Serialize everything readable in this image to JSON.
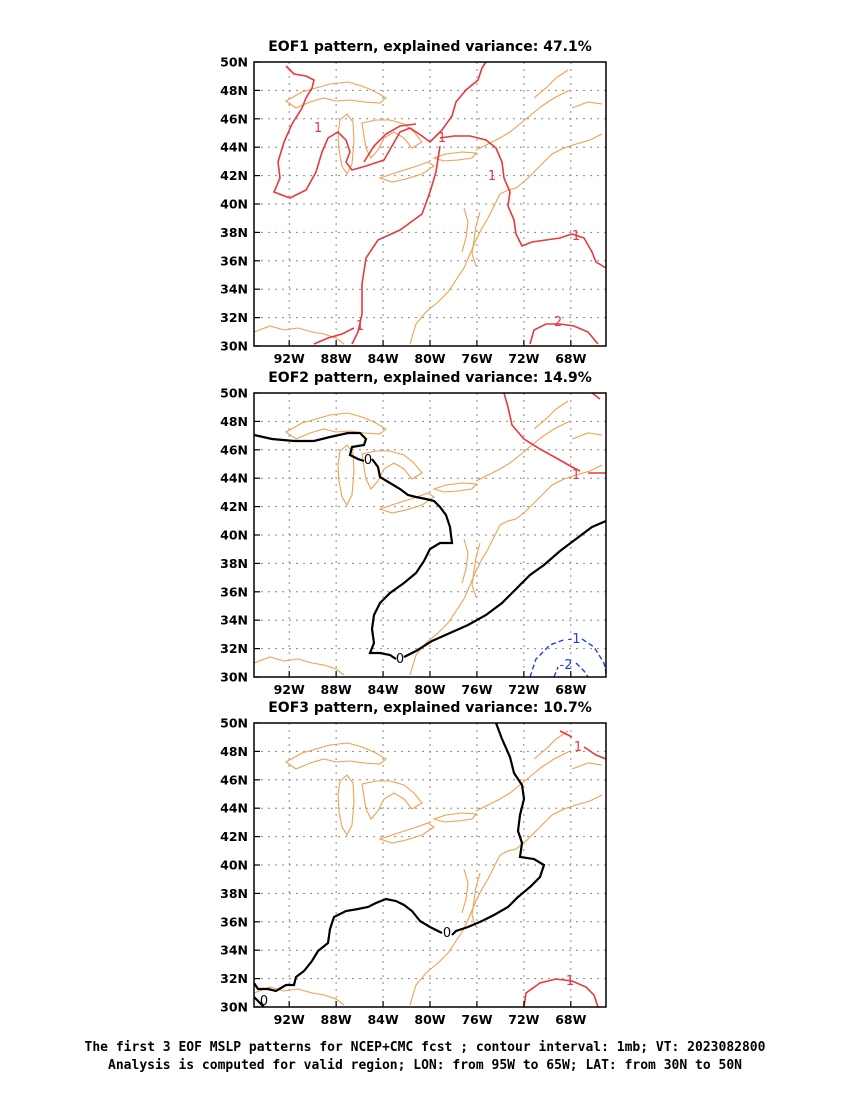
{
  "panels": [
    {
      "title": "EOF1 pattern, explained variance: 47.1%",
      "contour_labels": [
        {
          "text": "1",
          "color": "#e8383d"
        },
        {
          "text": "1",
          "color": "#e8383d"
        },
        {
          "text": "1",
          "color": "#e8383d"
        },
        {
          "text": "1",
          "color": "#e8383d"
        },
        {
          "text": "1",
          "color": "#e8383d"
        },
        {
          "text": "2",
          "color": "#e8383d"
        }
      ]
    },
    {
      "title": "EOF2 pattern, explained variance: 14.9%",
      "contour_labels": [
        {
          "text": "0",
          "color": "#000000"
        },
        {
          "text": "0",
          "color": "#000000"
        },
        {
          "text": "1",
          "color": "#e8383d"
        },
        {
          "text": "-1",
          "color": "#1f3fe0"
        },
        {
          "text": "-2",
          "color": "#1f3fe0"
        }
      ]
    },
    {
      "title": "EOF3 pattern, explained variance: 10.7%",
      "contour_labels": [
        {
          "text": "0",
          "color": "#000000"
        },
        {
          "text": "0",
          "color": "#000000"
        },
        {
          "text": "1",
          "color": "#e8383d"
        },
        {
          "text": "1",
          "color": "#e8383d"
        }
      ]
    }
  ],
  "map": {
    "lon_ticks": [
      "92W",
      "88W",
      "84W",
      "80W",
      "76W",
      "72W",
      "68W"
    ],
    "lat_ticks": [
      "50N",
      "48N",
      "46N",
      "44N",
      "42N",
      "40N",
      "38N",
      "36N",
      "34N",
      "32N",
      "30N"
    ],
    "coastline_color": "#f0a050",
    "grid_color": "#888888"
  },
  "caption": {
    "line1": "The first 3 EOF MSLP patterns for NCEP+CMC fcst ; contour interval: 1mb; VT: 2023082800",
    "line2": "Analysis is computed for valid region; LON: from 95W to 65W; LAT: from 30N to 50N"
  }
}
